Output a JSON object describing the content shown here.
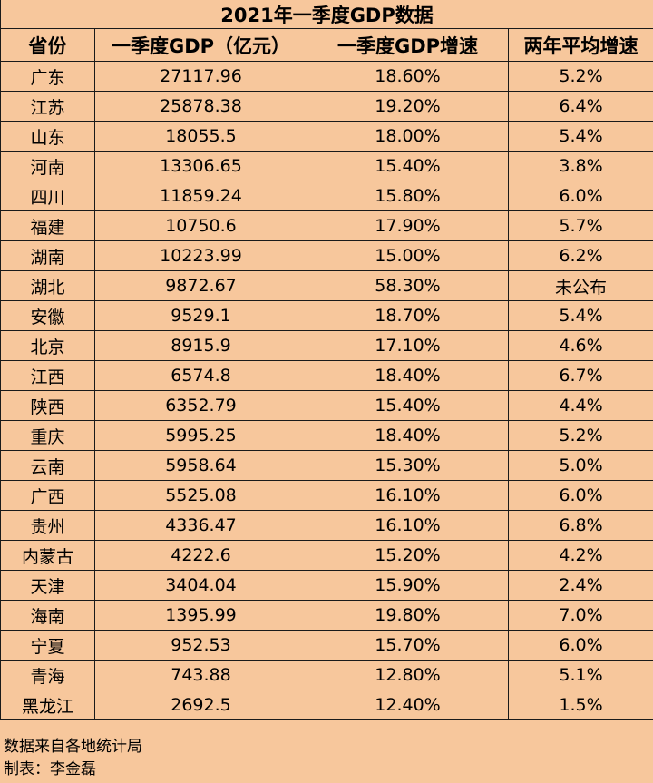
{
  "title": "2021年一季度GDP数据",
  "headers": [
    "省份",
    "一季度GDP（亿元）",
    "一季度GDP增速",
    "两年平均增速"
  ],
  "rows": [
    [
      "广东",
      "27117.96",
      "18.60%",
      "5.2%"
    ],
    [
      "江苏",
      "25878.38",
      "19.20%",
      "6.4%"
    ],
    [
      "山东",
      "18055.5",
      "18.00%",
      "5.4%"
    ],
    [
      "河南",
      "13306.65",
      "15.40%",
      "3.8%"
    ],
    [
      "四川",
      "11859.24",
      "15.80%",
      "6.0%"
    ],
    [
      "福建",
      "10750.6",
      "17.90%",
      "5.7%"
    ],
    [
      "湖南",
      "10223.99",
      "15.00%",
      "6.2%"
    ],
    [
      "湖北",
      "9872.67",
      "58.30%",
      "未公布"
    ],
    [
      "安徽",
      "9529.1",
      "18.70%",
      "5.4%"
    ],
    [
      "北京",
      "8915.9",
      "17.10%",
      "4.6%"
    ],
    [
      "江西",
      "6574.8",
      "18.40%",
      "6.7%"
    ],
    [
      "陕西",
      "6352.79",
      "15.40%",
      "4.4%"
    ],
    [
      "重庆",
      "5995.25",
      "18.40%",
      "5.2%"
    ],
    [
      "云南",
      "5958.64",
      "15.30%",
      "5.0%"
    ],
    [
      "广西",
      "5525.08",
      "16.10%",
      "6.0%"
    ],
    [
      "贵州",
      "4336.47",
      "16.10%",
      "6.8%"
    ],
    [
      "内蒙古",
      "4222.6",
      "15.20%",
      "4.2%"
    ],
    [
      "天津",
      "3404.04",
      "15.90%",
      "2.4%"
    ],
    [
      "海南",
      "1395.99",
      "19.80%",
      "7.0%"
    ],
    [
      "宁夏",
      "952.53",
      "15.70%",
      "6.0%"
    ],
    [
      "青海",
      "743.88",
      "12.80%",
      "5.1%"
    ],
    [
      "黑龙江",
      "2692.5",
      "12.40%",
      "1.5%"
    ]
  ],
  "footer": {
    "source": "数据来自各地统计局",
    "author": "制表：李金磊"
  },
  "colors": {
    "background": "#f7c79c",
    "border": "#1a1a1a",
    "text": "#000000"
  },
  "chart_data": {
    "type": "table",
    "title": "2021年一季度GDP数据",
    "columns": [
      "省份",
      "一季度GDP（亿元）",
      "一季度GDP增速",
      "两年平均增速"
    ],
    "rows": [
      [
        "广东",
        "27117.96",
        "18.60%",
        "5.2%"
      ],
      [
        "江苏",
        "25878.38",
        "19.20%",
        "6.4%"
      ],
      [
        "山东",
        "18055.5",
        "18.00%",
        "5.4%"
      ],
      [
        "河南",
        "13306.65",
        "15.40%",
        "3.8%"
      ],
      [
        "四川",
        "11859.24",
        "15.80%",
        "6.0%"
      ],
      [
        "福建",
        "10750.6",
        "17.90%",
        "5.7%"
      ],
      [
        "湖南",
        "10223.99",
        "15.00%",
        "6.2%"
      ],
      [
        "湖北",
        "9872.67",
        "58.30%",
        "未公布"
      ],
      [
        "安徽",
        "9529.1",
        "18.70%",
        "5.4%"
      ],
      [
        "北京",
        "8915.9",
        "17.10%",
        "4.6%"
      ],
      [
        "江西",
        "6574.8",
        "18.40%",
        "6.7%"
      ],
      [
        "陕西",
        "6352.79",
        "15.40%",
        "4.4%"
      ],
      [
        "重庆",
        "5995.25",
        "18.40%",
        "5.2%"
      ],
      [
        "云南",
        "5958.64",
        "15.30%",
        "5.0%"
      ],
      [
        "广西",
        "5525.08",
        "16.10%",
        "6.0%"
      ],
      [
        "贵州",
        "4336.47",
        "16.10%",
        "6.8%"
      ],
      [
        "内蒙古",
        "4222.6",
        "15.20%",
        "4.2%"
      ],
      [
        "天津",
        "3404.04",
        "15.90%",
        "2.4%"
      ],
      [
        "海南",
        "1395.99",
        "19.80%",
        "7.0%"
      ],
      [
        "宁夏",
        "952.53",
        "15.70%",
        "6.0%"
      ],
      [
        "青海",
        "743.88",
        "12.80%",
        "5.1%"
      ],
      [
        "黑龙江",
        "2692.5",
        "12.40%",
        "1.5%"
      ]
    ]
  }
}
